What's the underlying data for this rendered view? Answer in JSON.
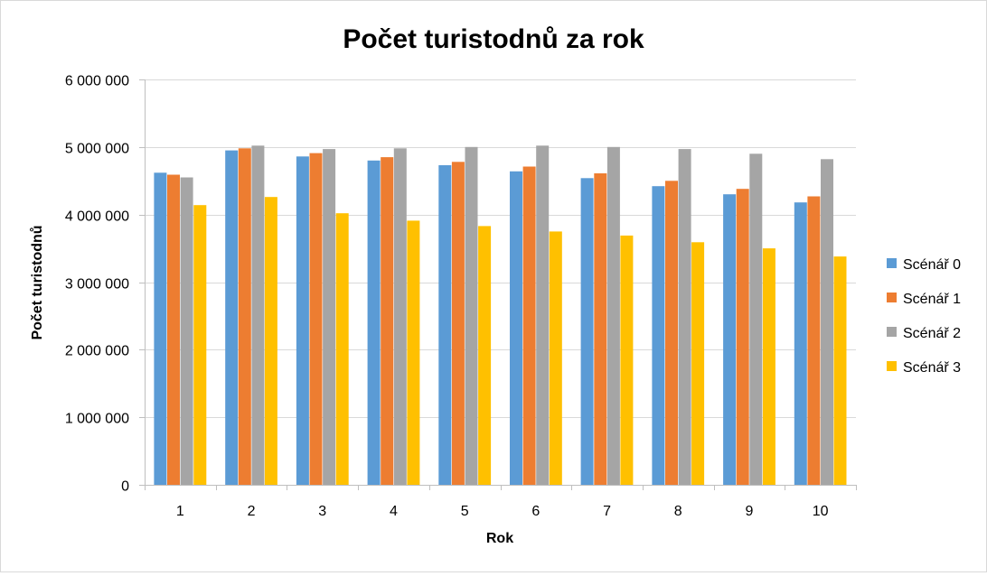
{
  "chart_data": {
    "type": "bar",
    "title": "Počet turistodnů za rok",
    "xlabel": "Rok",
    "ylabel": "Počet turistodnů",
    "ylim": [
      0,
      6000000
    ],
    "yticks": [
      0,
      1000000,
      2000000,
      3000000,
      4000000,
      5000000,
      6000000
    ],
    "ytick_labels": [
      "0",
      "1 000 000",
      "2 000 000",
      "3 000 000",
      "4 000 000",
      "5 000 000",
      "6 000 000"
    ],
    "grid": true,
    "legend_position": "right",
    "categories": [
      "1",
      "2",
      "3",
      "4",
      "5",
      "6",
      "7",
      "8",
      "9",
      "10"
    ],
    "series": [
      {
        "name": "Scénář 0",
        "color": "#5b9bd5",
        "values": [
          4620000,
          4950000,
          4860000,
          4800000,
          4730000,
          4640000,
          4540000,
          4420000,
          4300000,
          4180000
        ]
      },
      {
        "name": "Scénář 1",
        "color": "#ed7d31",
        "values": [
          4590000,
          4980000,
          4910000,
          4850000,
          4780000,
          4710000,
          4610000,
          4500000,
          4380000,
          4270000
        ]
      },
      {
        "name": "Scénář 2",
        "color": "#a5a5a5",
        "values": [
          4550000,
          5020000,
          4970000,
          4980000,
          5000000,
          5020000,
          5000000,
          4970000,
          4900000,
          4820000
        ]
      },
      {
        "name": "Scénář 3",
        "color": "#ffc000",
        "values": [
          4140000,
          4260000,
          4020000,
          3910000,
          3830000,
          3750000,
          3690000,
          3590000,
          3500000,
          3380000
        ]
      }
    ]
  }
}
